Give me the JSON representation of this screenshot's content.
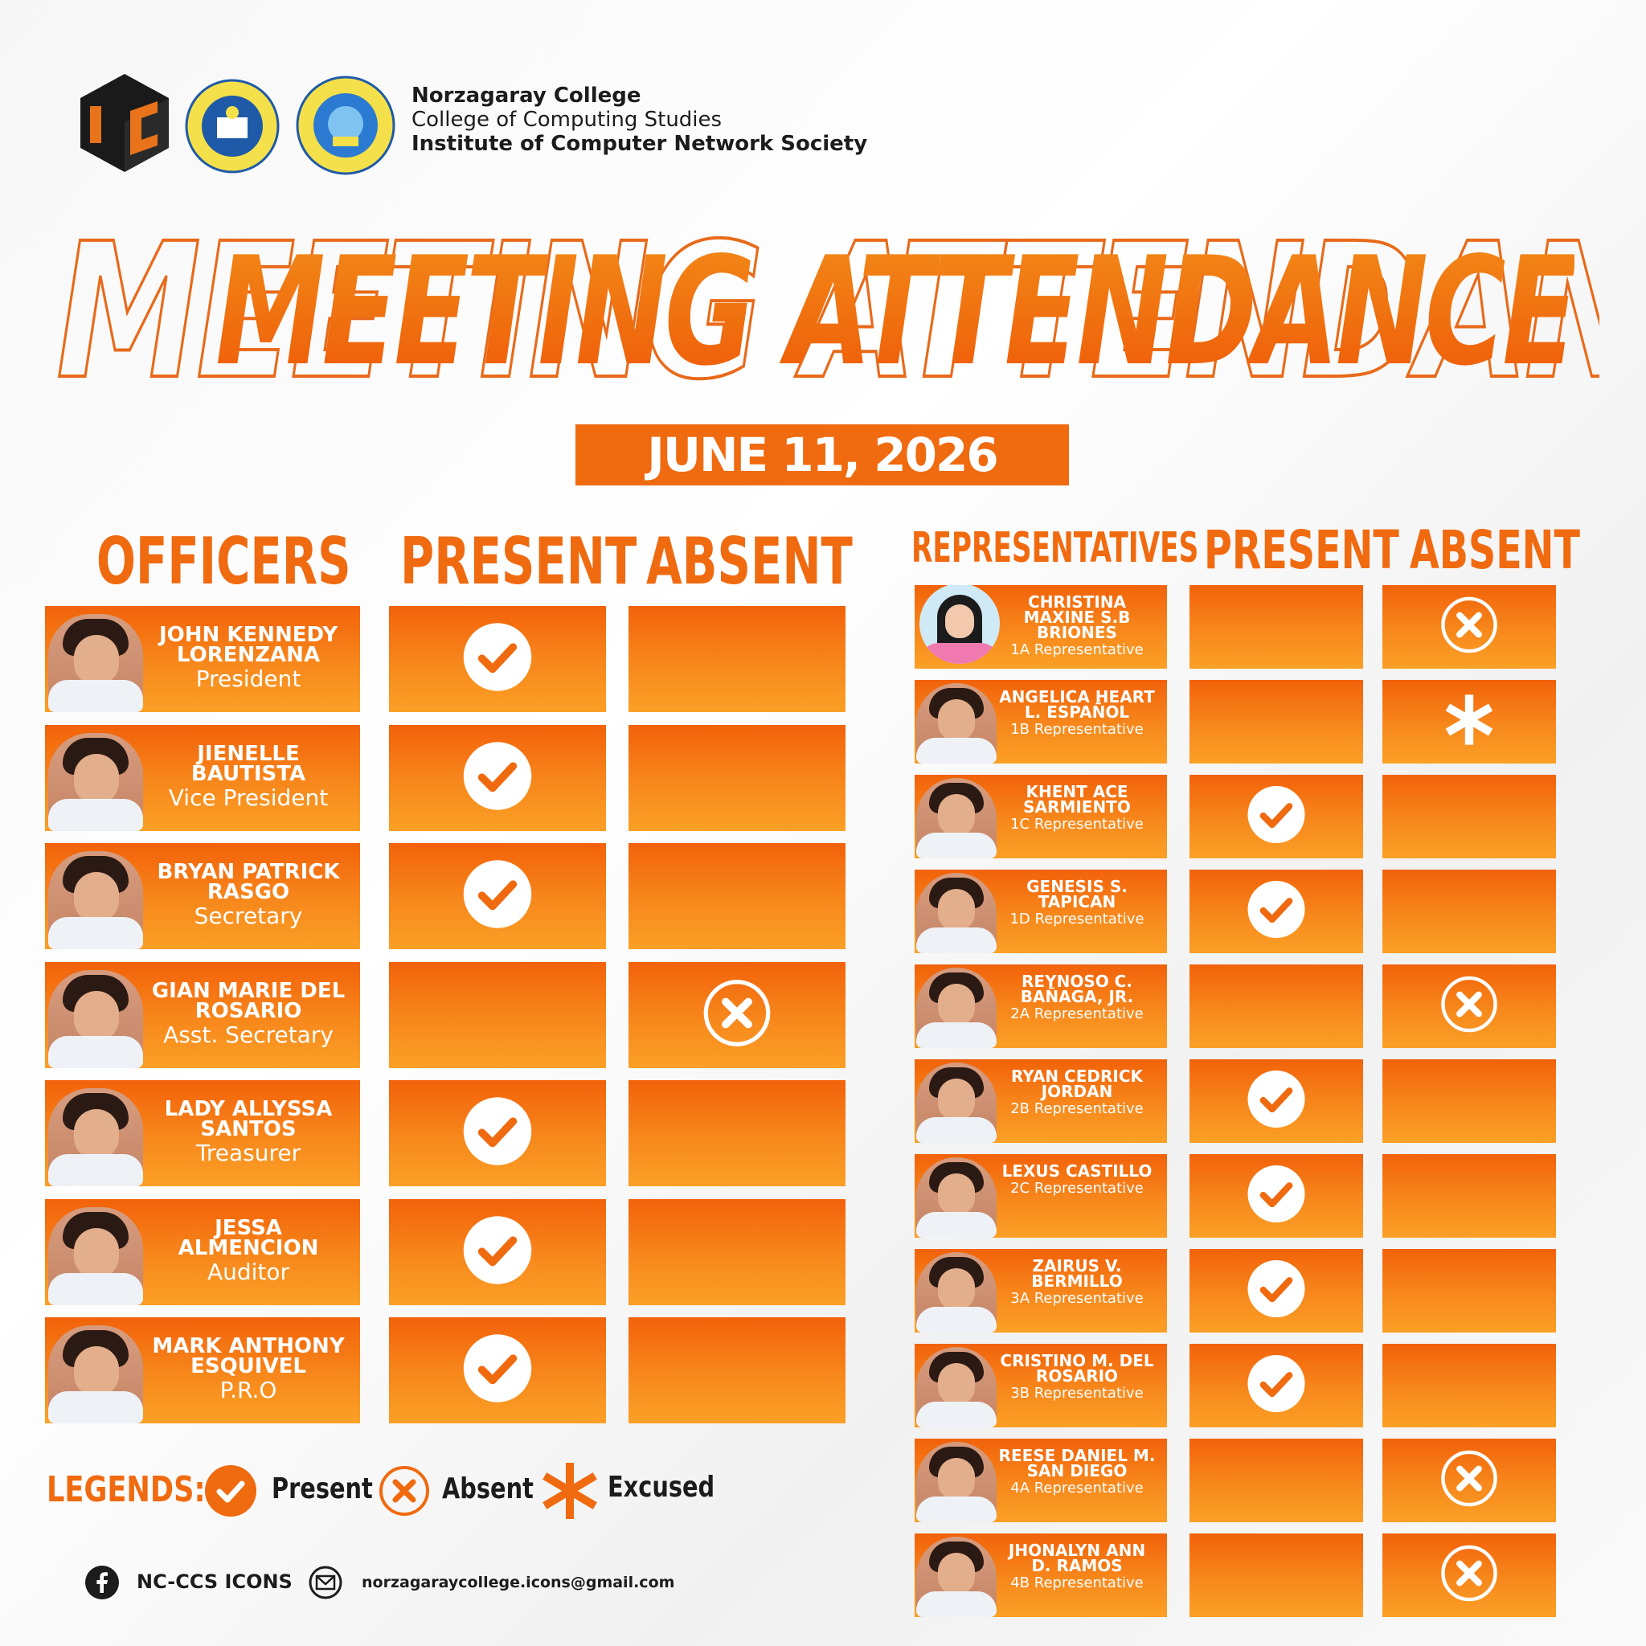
{
  "header": {
    "logo_icon_text": "ICON",
    "org_line1": "Norzagaray College",
    "org_line2": "College of Computing Studies",
    "org_line3": "Institute of Computer Network Society"
  },
  "title": "MEETING ATTENDANCE",
  "date": "JUNE 11, 2026",
  "officers_table": {
    "headers": {
      "name": "OFFICERS",
      "present": "PRESENT",
      "absent": "ABSENT"
    },
    "rows": [
      {
        "name": "JOHN KENNEDY LORENZANA",
        "role": "President",
        "status": "present"
      },
      {
        "name": "JIENELLE BAUTISTA",
        "role": "Vice President",
        "status": "present"
      },
      {
        "name": "BRYAN PATRICK RASGO",
        "role": "Secretary",
        "status": "present"
      },
      {
        "name": "GIAN MARIE DEL ROSARIO",
        "role": "Asst. Secretary",
        "status": "absent"
      },
      {
        "name": "LADY ALLYSSA SANTOS",
        "role": "Treasurer",
        "status": "present"
      },
      {
        "name": "JESSA ALMENCION",
        "role": "Auditor",
        "status": "present"
      },
      {
        "name": "MARK ANTHONY ESQUIVEL",
        "role": "P.R.O",
        "status": "present"
      }
    ]
  },
  "reps_table": {
    "headers": {
      "name": "REPRESENTATIVES",
      "present": "PRESENT",
      "absent": "ABSENT"
    },
    "rows": [
      {
        "name": "CHRISTINA MAXINE S.B BRIONES",
        "role": "1A Representative",
        "status": "absent"
      },
      {
        "name": "ANGELICA HEART L. ESPAÑOL",
        "role": "1B Representative",
        "status": "excused"
      },
      {
        "name": "KHENT ACE SARMIENTO",
        "role": "1C Representative",
        "status": "present"
      },
      {
        "name": "GENESIS S. TAPICAN",
        "role": "1D Representative",
        "status": "present"
      },
      {
        "name": "REYNOSO C. BAÑAGA, JR.",
        "role": "2A Representative",
        "status": "absent"
      },
      {
        "name": "RYAN CEDRICK JORDAN",
        "role": "2B Representative",
        "status": "present"
      },
      {
        "name": "LEXUS CASTILLO",
        "role": "2C Representative",
        "status": "present"
      },
      {
        "name": "ZAIRUS V. BERMILLO",
        "role": "3A Representative",
        "status": "present"
      },
      {
        "name": "CRISTINO M. DEL ROSARIO",
        "role": "3B Representative",
        "status": "present"
      },
      {
        "name": "REESE DANIEL M. SAN DIEGO",
        "role": "4A Representative",
        "status": "absent"
      },
      {
        "name": "JHONALYN ANN D. RAMOS",
        "role": "4B Representative",
        "status": "absent"
      }
    ]
  },
  "legend": {
    "title": "LEGENDS:",
    "present": "Present",
    "absent": "Absent",
    "excused": "Excused"
  },
  "footer": {
    "facebook": "NC-CCS ICONS",
    "email": "norzagaraycollege.icons@gmail.com"
  },
  "colors": {
    "accent": "#f06a10",
    "accent_light": "#fba026",
    "text_dark": "#1c1c1c"
  },
  "icons": {
    "present": "check-circle-icon",
    "absent": "x-circle-icon",
    "excused": "asterisk-icon"
  }
}
